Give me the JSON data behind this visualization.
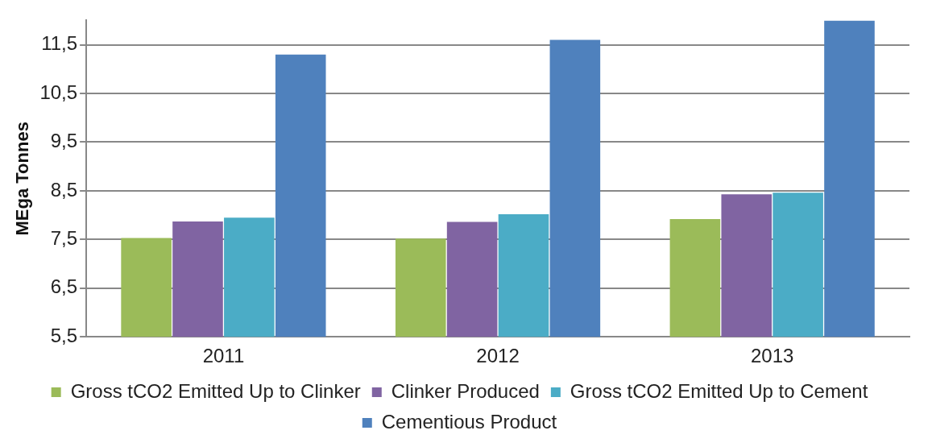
{
  "chart_data": {
    "type": "bar",
    "ylabel": "MEga Tonnes",
    "categories": [
      "2011",
      "2012",
      "2013"
    ],
    "series": [
      {
        "name": "Gross tCO2 Emitted Up to Clinker",
        "color": "#9bbb59",
        "values": [
          7.53,
          7.52,
          7.92
        ]
      },
      {
        "name": "Clinker Produced",
        "color": "#8064a2",
        "values": [
          7.87,
          7.86,
          8.43
        ]
      },
      {
        "name": "Gross tCO2 Emitted Up to Cement",
        "color": "#4bacc6",
        "values": [
          7.95,
          8.02,
          8.46
        ]
      },
      {
        "name": "Cementious Product",
        "color": "#4f81bd",
        "values": [
          11.3,
          11.6,
          12.0
        ]
      }
    ],
    "ylim": [
      5.5,
      12
    ],
    "yticks": [
      {
        "value": 5.5,
        "label": "5,5"
      },
      {
        "value": 6.5,
        "label": "6,5"
      },
      {
        "value": 7.5,
        "label": "7,5"
      },
      {
        "value": 8.5,
        "label": "8,5"
      },
      {
        "value": 9.5,
        "label": "9,5"
      },
      {
        "value": 10.5,
        "label": "10,5"
      },
      {
        "value": 11.5,
        "label": "11,5"
      }
    ],
    "grid": "y",
    "legend": "bottom"
  }
}
